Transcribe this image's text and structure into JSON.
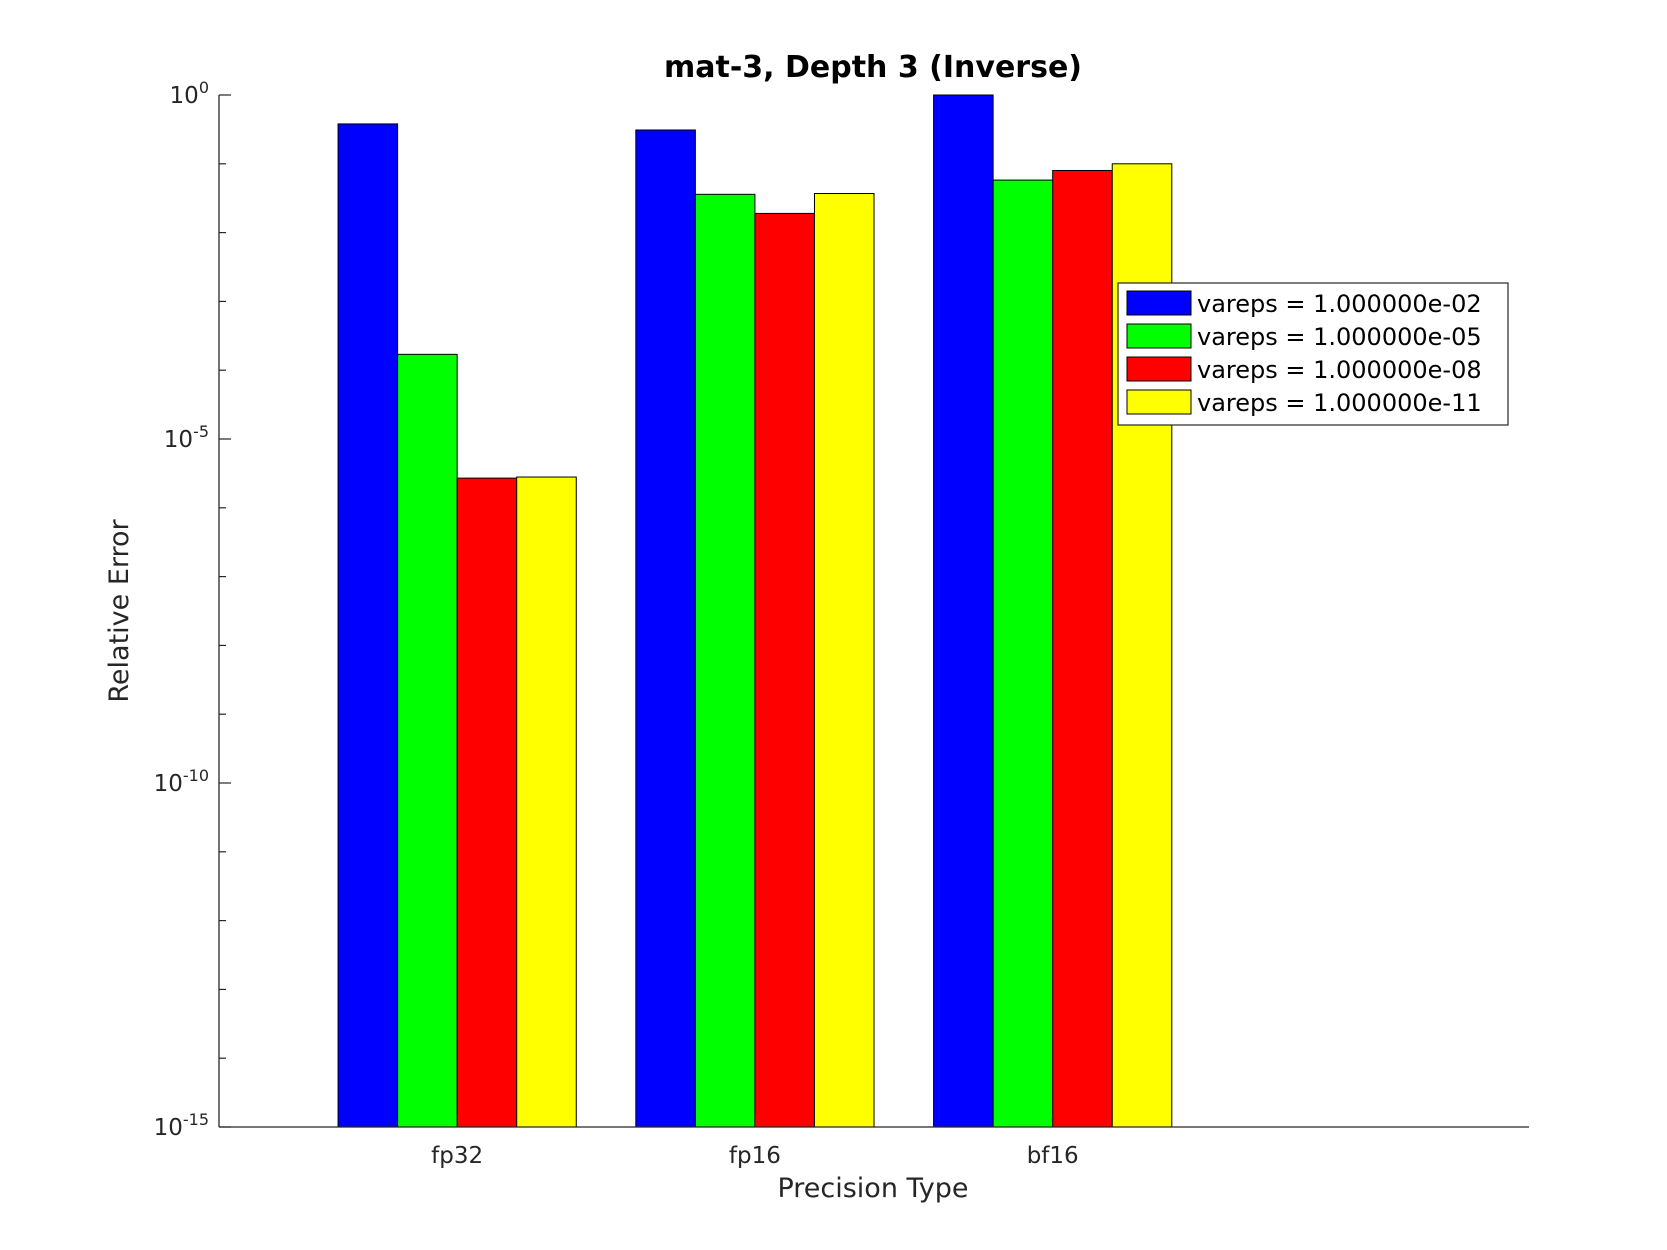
{
  "chart_data": {
    "type": "bar",
    "title": "mat-3, Depth 3 (Inverse)",
    "xlabel": "Precision Type",
    "ylabel": "Relative Error",
    "yscale": "log",
    "ylim": [
      1e-15,
      1
    ],
    "yticks": [
      {
        "value": 1,
        "base": "10",
        "exp": "0"
      },
      {
        "value": 1e-05,
        "base": "10",
        "exp": "-5"
      },
      {
        "value": 1e-10,
        "base": "10",
        "exp": "-10"
      },
      {
        "value": 1e-15,
        "base": "10",
        "exp": "-15"
      }
    ],
    "categories": [
      "fp32",
      "fp16",
      "bf16"
    ],
    "series": [
      {
        "name": "vareps = 1.000000e-02",
        "color": "#0000ff",
        "values": [
          0.38,
          0.31,
          1.0
        ]
      },
      {
        "name": "vareps = 1.000000e-05",
        "color": "#00ff00",
        "values": [
          0.00017,
          0.036,
          0.058
        ]
      },
      {
        "name": "vareps = 1.000000e-08",
        "color": "#ff0000",
        "values": [
          2.7e-06,
          0.019,
          0.08
        ]
      },
      {
        "name": "vareps = 1.000000e-11",
        "color": "#ffff00",
        "values": [
          2.8e-06,
          0.037,
          0.1
        ]
      }
    ],
    "legend_position": "top-right",
    "grid": false
  }
}
